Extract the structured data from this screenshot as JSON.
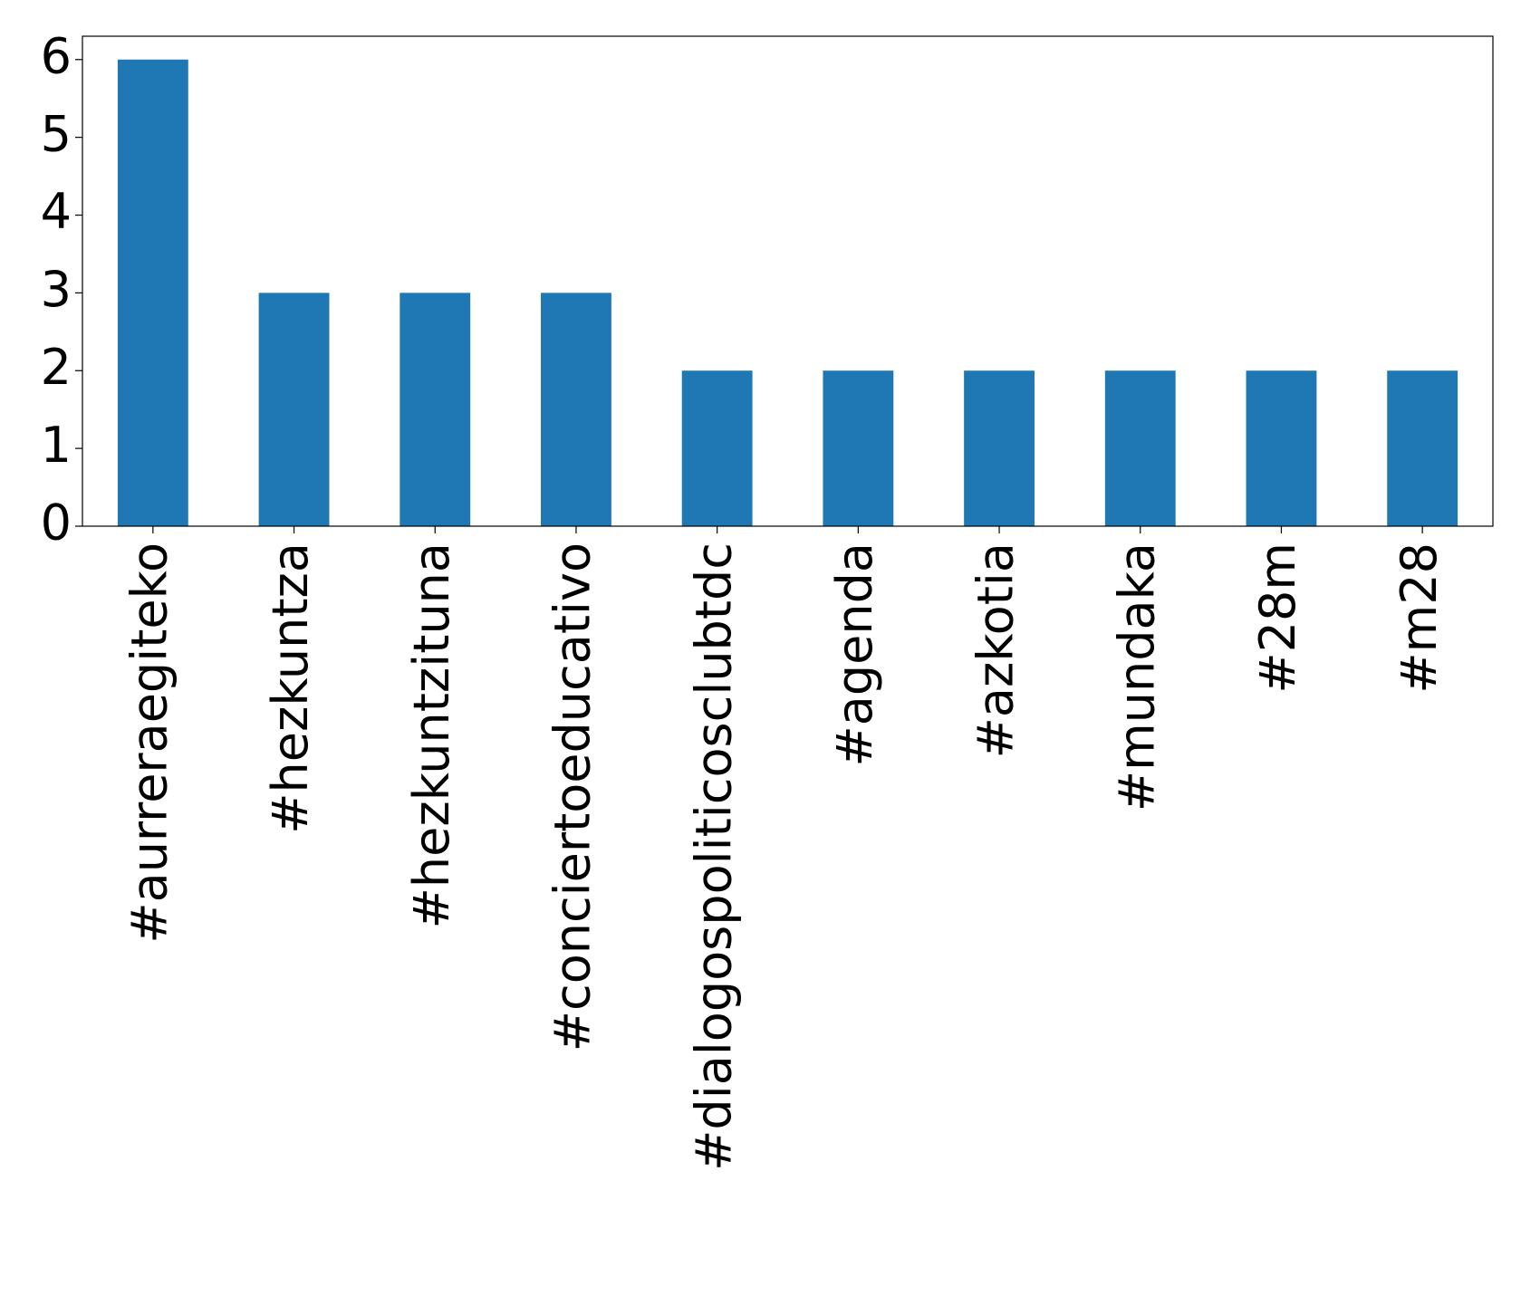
{
  "chart_data": {
    "type": "bar",
    "categories": [
      "#aurreraegiteko",
      "#hezkuntza",
      "#hezkuntzituna",
      "#conciertoeducativo",
      "#dialogospoliticosclubtdc",
      "#agenda",
      "#azkotia",
      "#mundaka",
      "#28m",
      "#m28"
    ],
    "values": [
      6,
      3,
      3,
      3,
      2,
      2,
      2,
      2,
      2,
      2
    ],
    "color": "#1f77b4",
    "ylim": [
      0,
      6.3
    ],
    "yticks": [
      0,
      1,
      2,
      3,
      4,
      5,
      6
    ],
    "grid": false
  }
}
